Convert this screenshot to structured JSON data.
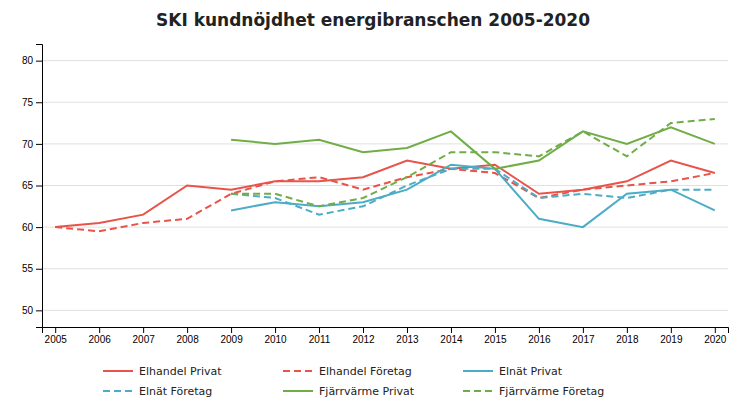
{
  "chart_data": {
    "type": "line",
    "title": "SKI kundnöjdhet energibranschen 2005-2020",
    "x": [
      2005,
      2006,
      2007,
      2008,
      2009,
      2010,
      2011,
      2012,
      2013,
      2014,
      2015,
      2016,
      2017,
      2018,
      2019,
      2020
    ],
    "xlim": [
      2004.7,
      2020.3
    ],
    "xticks": [
      2005,
      2006,
      2007,
      2008,
      2009,
      2010,
      2011,
      2012,
      2013,
      2014,
      2015,
      2016,
      2017,
      2018,
      2019,
      2020
    ],
    "ylim": [
      48,
      82
    ],
    "yticks": [
      50,
      55,
      60,
      65,
      70,
      75,
      80
    ],
    "grid": true,
    "legend": "bottom",
    "series": [
      {
        "name": "Elhandel Privat",
        "color": "#E8534A",
        "line_style": "solid",
        "values": [
          60.0,
          60.5,
          61.5,
          65.0,
          64.5,
          65.5,
          65.5,
          66.0,
          68.0,
          67.0,
          67.5,
          64.0,
          64.5,
          65.5,
          68.0,
          66.5
        ]
      },
      {
        "name": "Elhandel Företag",
        "color": "#E8534A",
        "line_style": "dashed",
        "values": [
          60.0,
          59.5,
          60.5,
          61.0,
          64.0,
          65.5,
          66.0,
          64.5,
          66.0,
          67.0,
          66.5,
          63.5,
          64.5,
          65.0,
          65.5,
          66.5
        ]
      },
      {
        "name": "Elnät Privat",
        "color": "#4BACC6",
        "line_style": "solid",
        "values": [
          null,
          null,
          null,
          null,
          62.0,
          63.0,
          62.5,
          63.0,
          64.5,
          67.5,
          67.0,
          61.0,
          60.0,
          64.0,
          64.5,
          62.0
        ]
      },
      {
        "name": "Elnät Företag",
        "color": "#4BACC6",
        "line_style": "dashed",
        "values": [
          null,
          null,
          null,
          null,
          64.0,
          63.5,
          61.5,
          62.5,
          65.0,
          67.0,
          67.0,
          63.5,
          64.0,
          63.5,
          64.5,
          64.5
        ]
      },
      {
        "name": "Fjärrvärme Privat",
        "color": "#70AD47",
        "line_style": "solid",
        "values": [
          null,
          null,
          null,
          null,
          70.5,
          70.0,
          70.5,
          69.0,
          69.5,
          71.5,
          67.0,
          68.0,
          71.5,
          70.0,
          72.0,
          70.0
        ]
      },
      {
        "name": "Fjärrvärme Företag",
        "color": "#70AD47",
        "line_style": "dashed",
        "values": [
          null,
          null,
          null,
          null,
          64.0,
          64.0,
          62.5,
          63.5,
          66.0,
          69.0,
          69.0,
          68.5,
          71.5,
          68.5,
          72.5,
          73.0
        ]
      }
    ]
  }
}
